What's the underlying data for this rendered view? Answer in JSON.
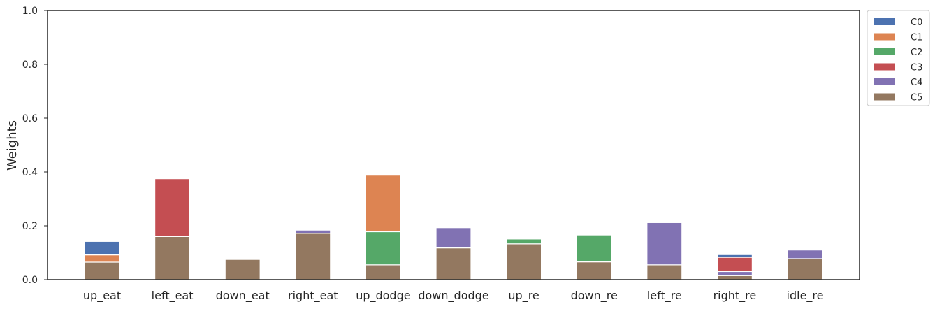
{
  "chart_data": {
    "type": "bar",
    "stacked": true,
    "ylabel": "Weights",
    "ylim": [
      0,
      1.0
    ],
    "yticks": [
      "0.0",
      "0.2",
      "0.4",
      "0.6",
      "0.8",
      "1.0"
    ],
    "grid": false,
    "legend_position": "outside-top-right",
    "categories": [
      "up_eat",
      "left_eat",
      "down_eat",
      "right_eat",
      "up_dodge",
      "down_dodge",
      "up_re",
      "down_re",
      "left_re",
      "right_re",
      "idle_re"
    ],
    "series": [
      {
        "name": "C5",
        "color": "#937860",
        "values": [
          0.065,
          0.16,
          0.075,
          0.172,
          0.055,
          0.118,
          0.133,
          0.066,
          0.055,
          0.015,
          0.078
        ]
      },
      {
        "name": "C4",
        "color": "#8172b3",
        "values": [
          0.0,
          0.0,
          0.0,
          0.012,
          0.0,
          0.075,
          0.0,
          0.0,
          0.157,
          0.015,
          0.032
        ]
      },
      {
        "name": "C3",
        "color": "#c44e52",
        "values": [
          0.0,
          0.215,
          0.0,
          0.0,
          0.0,
          0.0,
          0.0,
          0.0,
          0.0,
          0.053,
          0.0
        ]
      },
      {
        "name": "C2",
        "color": "#55a868",
        "values": [
          0.0,
          0.0,
          0.0,
          0.0,
          0.123,
          0.0,
          0.018,
          0.1,
          0.0,
          0.0,
          0.0
        ]
      },
      {
        "name": "C1",
        "color": "#dd8452",
        "values": [
          0.027,
          0.0,
          0.0,
          0.0,
          0.21,
          0.0,
          0.0,
          0.0,
          0.0,
          0.0,
          0.0
        ]
      },
      {
        "name": "C0",
        "color": "#4c72b0",
        "values": [
          0.05,
          0.0,
          0.0,
          0.0,
          0.0,
          0.0,
          0.0,
          0.0,
          0.0,
          0.01,
          0.0
        ]
      }
    ],
    "legend_order": [
      "C0",
      "C1",
      "C2",
      "C3",
      "C4",
      "C5"
    ]
  }
}
